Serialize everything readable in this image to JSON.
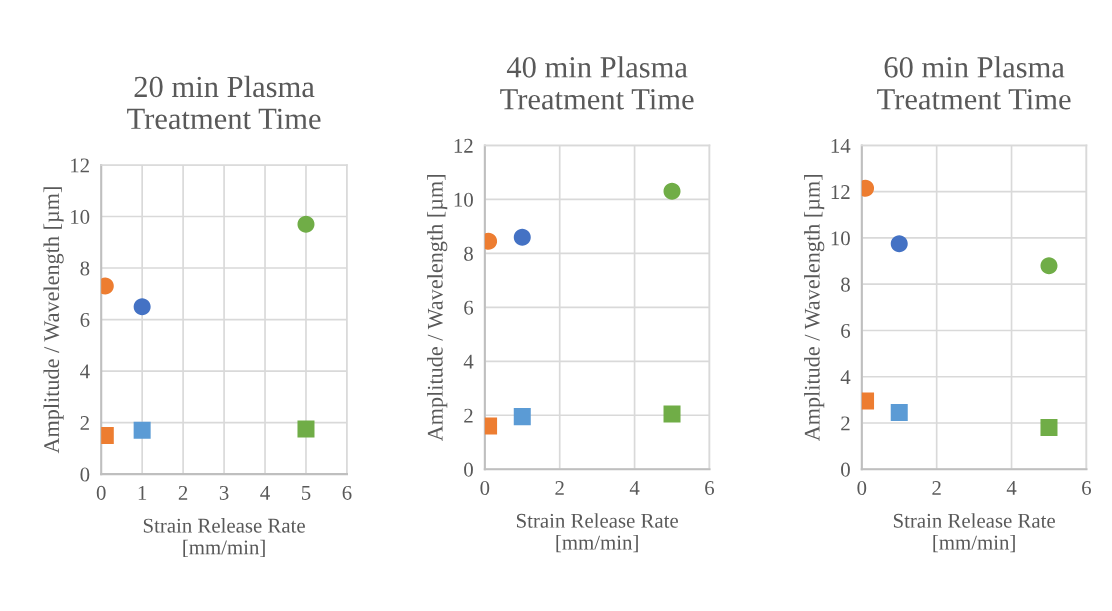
{
  "chart_data": [
    {
      "type": "scatter",
      "title": "20 min Plasma\nTreatment Time",
      "xlabel": "Strain Release Rate\n[mm/min]",
      "ylabel": "Amplitude / Wavelength [µm]",
      "xlim": [
        0,
        6
      ],
      "xticks": [
        0,
        1,
        2,
        3,
        4,
        5,
        6
      ],
      "ylim": [
        0,
        12
      ],
      "yticks": [
        0,
        2,
        4,
        6,
        8,
        10,
        12
      ],
      "grid": true,
      "legend": false,
      "series": [
        {
          "marker": "circle",
          "x": [
            0.1,
            1,
            5
          ],
          "values": [
            7.3,
            6.5,
            9.7
          ],
          "colors": [
            "#ed7d31",
            "#4472c4",
            "#70ad47"
          ]
        },
        {
          "marker": "square",
          "x": [
            0.1,
            1,
            5
          ],
          "values": [
            1.5,
            1.7,
            1.75
          ],
          "colors": [
            "#ed7d31",
            "#5b9bd5",
            "#70ad47"
          ]
        }
      ]
    },
    {
      "type": "scatter",
      "title": "40 min Plasma\nTreatment Time",
      "xlabel": "Strain Release Rate\n[mm/min]",
      "ylabel": "Amplitude / Wavelength [µm]",
      "xlim": [
        0,
        6
      ],
      "xticks": [
        0,
        2,
        4,
        6
      ],
      "ylim": [
        0,
        12
      ],
      "yticks": [
        0,
        2,
        4,
        6,
        8,
        10,
        12
      ],
      "grid": true,
      "legend": false,
      "series": [
        {
          "marker": "circle",
          "x": [
            0.1,
            1,
            5
          ],
          "values": [
            8.45,
            8.6,
            10.3
          ],
          "colors": [
            "#ed7d31",
            "#4472c4",
            "#70ad47"
          ]
        },
        {
          "marker": "square",
          "x": [
            0.1,
            1,
            5
          ],
          "values": [
            1.6,
            1.95,
            2.05
          ],
          "colors": [
            "#ed7d31",
            "#5b9bd5",
            "#70ad47"
          ]
        }
      ]
    },
    {
      "type": "scatter",
      "title": "60 min Plasma\nTreatment Time",
      "xlabel": "Strain Release Rate\n[mm/min]",
      "ylabel": "Amplitude / Wavelength [µm]",
      "xlim": [
        0,
        6
      ],
      "xticks": [
        0,
        2,
        4,
        6
      ],
      "ylim": [
        0,
        14
      ],
      "yticks": [
        0,
        2,
        4,
        6,
        8,
        10,
        12,
        14
      ],
      "grid": true,
      "legend": false,
      "series": [
        {
          "marker": "circle",
          "x": [
            0.1,
            1,
            5
          ],
          "values": [
            12.15,
            9.75,
            8.8
          ],
          "colors": [
            "#ed7d31",
            "#4472c4",
            "#70ad47"
          ]
        },
        {
          "marker": "square",
          "x": [
            0.1,
            1,
            5
          ],
          "values": [
            2.95,
            2.45,
            1.8
          ],
          "colors": [
            "#ed7d31",
            "#5b9bd5",
            "#70ad47"
          ]
        }
      ]
    }
  ]
}
